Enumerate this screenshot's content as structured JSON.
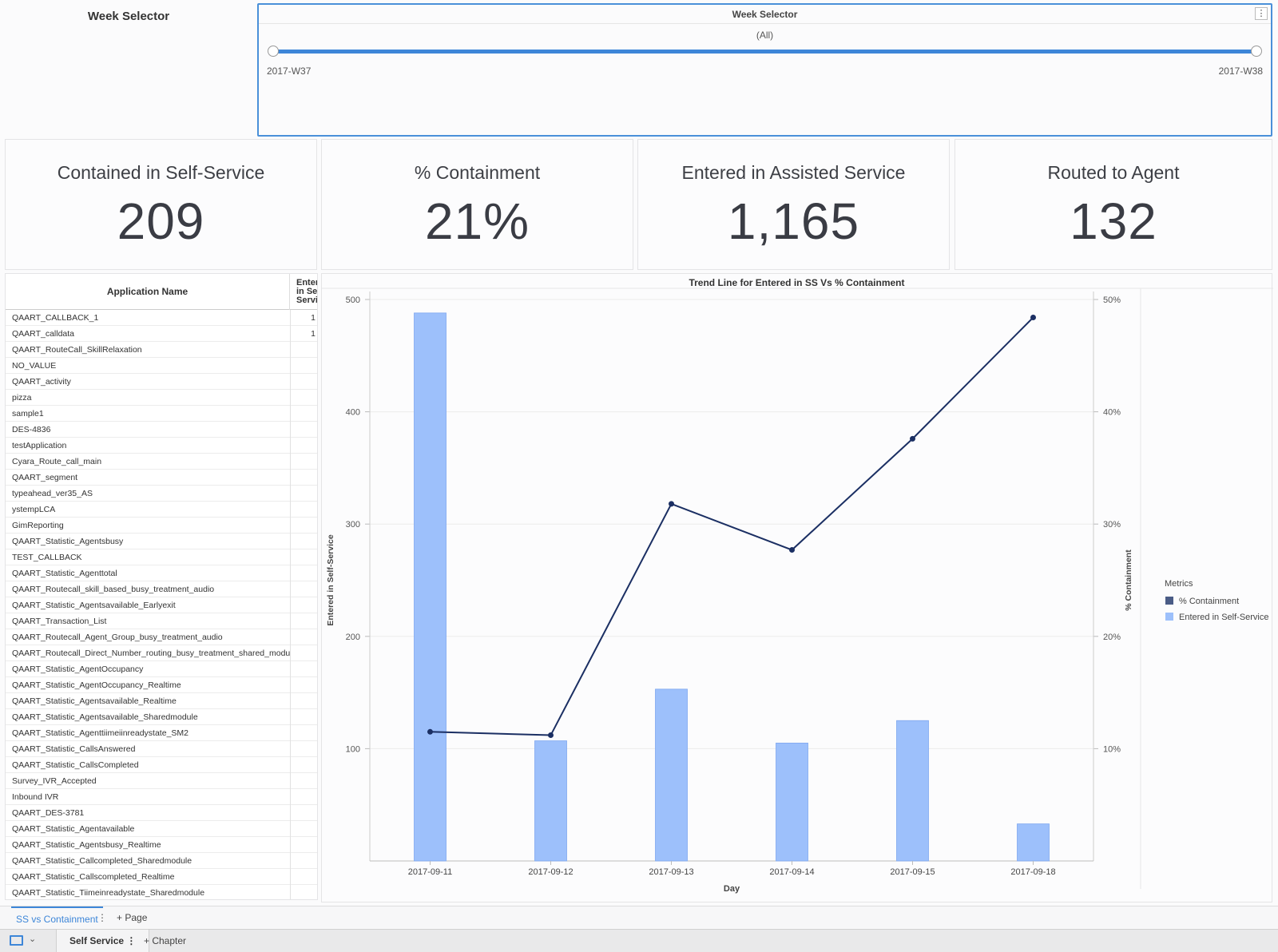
{
  "week_selector": {
    "left_title": "Week  Selector",
    "panel_title": "Week Selector",
    "menu_icon": "⋮",
    "value": "(All)",
    "min_label": "2017-W37",
    "max_label": "2017-W38"
  },
  "kpis": [
    {
      "label": "Contained in Self-Service",
      "value": "209"
    },
    {
      "label": "% Containment",
      "value": "21%"
    },
    {
      "label": "Entered in Assisted Service",
      "value": "1,165"
    },
    {
      "label": "Routed to Agent",
      "value": "132"
    }
  ],
  "table": {
    "col_name": "Application Name",
    "col_entered": "Entered in Self-Service",
    "rows": [
      {
        "name": "QAART_CALLBACK_1",
        "value": "1"
      },
      {
        "name": "QAART_calldata",
        "value": "1"
      },
      {
        "name": "QAART_RouteCall_SkillRelaxation",
        "value": ""
      },
      {
        "name": "NO_VALUE",
        "value": ""
      },
      {
        "name": "QAART_activity",
        "value": ""
      },
      {
        "name": "pizza",
        "value": ""
      },
      {
        "name": "sample1",
        "value": ""
      },
      {
        "name": "DES-4836",
        "value": ""
      },
      {
        "name": "testApplication",
        "value": ""
      },
      {
        "name": "Cyara_Route_call_main",
        "value": ""
      },
      {
        "name": "QAART_segment",
        "value": ""
      },
      {
        "name": "typeahead_ver35_AS",
        "value": ""
      },
      {
        "name": "ystempLCA",
        "value": ""
      },
      {
        "name": "GimReporting",
        "value": ""
      },
      {
        "name": "QAART_Statistic_Agentsbusy",
        "value": ""
      },
      {
        "name": "TEST_CALLBACK",
        "value": ""
      },
      {
        "name": "QAART_Statistic_Agenttotal",
        "value": ""
      },
      {
        "name": "QAART_Routecall_skill_based_busy_treatment_audio",
        "value": ""
      },
      {
        "name": "QAART_Statistic_Agentsavailable_Earlyexit",
        "value": ""
      },
      {
        "name": "QAART_Transaction_List",
        "value": ""
      },
      {
        "name": "QAART_Routecall_Agent_Group_busy_treatment_audio",
        "value": ""
      },
      {
        "name": "QAART_Routecall_Direct_Number_routing_busy_treatment_shared_module",
        "value": ""
      },
      {
        "name": "QAART_Statistic_AgentOccupancy",
        "value": ""
      },
      {
        "name": "QAART_Statistic_AgentOccupancy_Realtime",
        "value": ""
      },
      {
        "name": "QAART_Statistic_Agentsavailable_Realtime",
        "value": ""
      },
      {
        "name": "QAART_Statistic_Agentsavailable_Sharedmodule",
        "value": ""
      },
      {
        "name": "QAART_Statistic_Agenttiimeiinreadystate_SM2",
        "value": ""
      },
      {
        "name": "QAART_Statistic_CallsAnswered",
        "value": ""
      },
      {
        "name": "QAART_Statistic_CallsCompleted",
        "value": ""
      },
      {
        "name": "Survey_IVR_Accepted",
        "value": ""
      },
      {
        "name": "Inbound IVR",
        "value": ""
      },
      {
        "name": "QAART_DES-3781",
        "value": ""
      },
      {
        "name": "QAART_Statistic_Agentavailable",
        "value": ""
      },
      {
        "name": "QAART_Statistic_Agentsbusy_Realtime",
        "value": ""
      },
      {
        "name": "QAART_Statistic_Callcompleted_Sharedmodule",
        "value": ""
      },
      {
        "name": "QAART_Statistic_Callscompleted_Realtime",
        "value": ""
      },
      {
        "name": "QAART_Statistic_Tiimeinreadystate_Sharedmodule",
        "value": ""
      }
    ]
  },
  "chart_data": {
    "type": "bar",
    "title": "Trend Line for Entered in SS Vs % Containment",
    "xlabel": "Day",
    "ylabel": "Entered in Self-Service",
    "y2label": "% Containment",
    "categories": [
      "2017-09-11",
      "2017-09-12",
      "2017-09-13",
      "2017-09-14",
      "2017-09-15",
      "2017-09-18"
    ],
    "ylim": [
      0,
      500
    ],
    "y_ticks": [
      100,
      200,
      300,
      400,
      500
    ],
    "y2lim": [
      0,
      50
    ],
    "y2_ticks": [
      "10%",
      "20%",
      "30%",
      "40%",
      "50%"
    ],
    "y2_tick_values": [
      10,
      20,
      30,
      40,
      50
    ],
    "series": [
      {
        "name": "Entered in Self-Service",
        "kind": "bar",
        "axis": "left",
        "color": "#9dc0fb",
        "values": [
          488,
          107,
          153,
          105,
          125,
          33
        ]
      },
      {
        "name": "% Containment",
        "kind": "line",
        "axis": "right",
        "color": "#1b2f63",
        "values": [
          11.5,
          11.2,
          31.8,
          27.7,
          37.6,
          48.4
        ]
      }
    ],
    "legend": {
      "title": "Metrics",
      "position": "right",
      "items": [
        "% Containment",
        "Entered in Self-Service"
      ]
    },
    "grid": true
  },
  "tabs": {
    "page_tab": "SS vs Containment",
    "page_tab_menu": "⋮",
    "add_page": "+ Page",
    "chapter_tab": "Self Service  ⋮",
    "add_chapter": "+ Chapter",
    "chevron": "⌄"
  }
}
